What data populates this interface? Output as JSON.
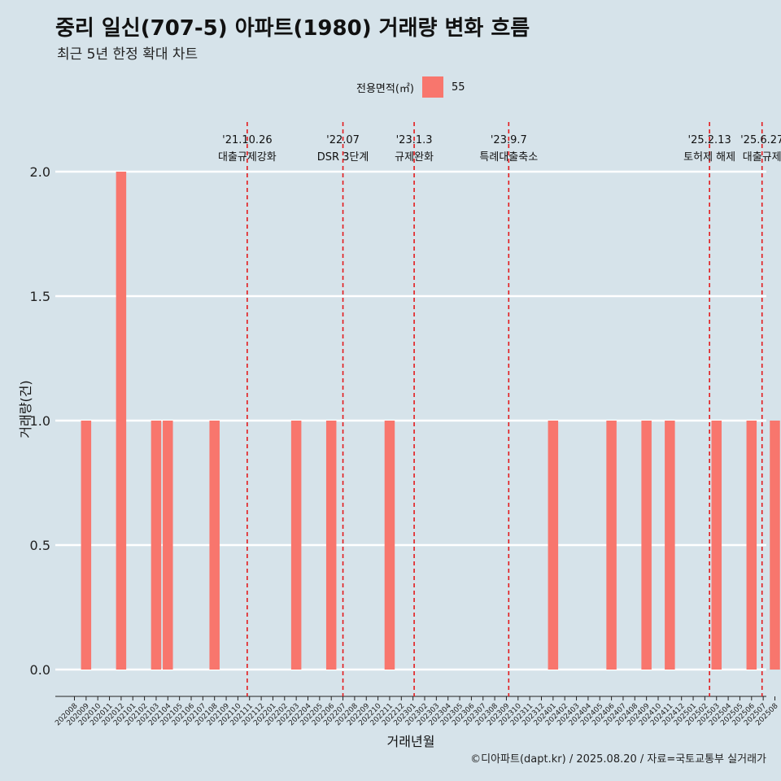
{
  "header": {
    "title": "중리 일신(707-5) 아파트(1980) 거래량 변화 흐름",
    "subtitle": "최근 5년 한정 확대 차트"
  },
  "legend": {
    "title": "전용면적(㎡)",
    "item": "55",
    "color": "#f8766d"
  },
  "caption": "©디아파트(dapt.kr) / 2025.08.20 / 자료=국토교통부 실거래가",
  "colors": {
    "background": "#d6e3ea",
    "bar": "#f8766d",
    "grid": "#ffffff",
    "event_line": "#e31a1c"
  },
  "chart_data": {
    "type": "bar",
    "title": "중리 일신(707-5) 아파트(1980) 거래량 변화 흐름",
    "subtitle": "최근 5년 한정 확대 차트",
    "xlabel": "거래년월",
    "ylabel": "거래량(건)",
    "ylim": [
      0,
      2
    ],
    "yticks": [
      0.0,
      0.5,
      1.0,
      1.5,
      2.0
    ],
    "ytick_labels": [
      "0.0",
      "0.5",
      "1.0",
      "1.5",
      "2.0"
    ],
    "grid": "horizontal major lines",
    "legend_position": "top",
    "categories": [
      "202008",
      "202009",
      "202010",
      "202011",
      "202012",
      "202101",
      "202102",
      "202103",
      "202104",
      "202105",
      "202106",
      "202107",
      "202108",
      "202109",
      "202110",
      "202111",
      "202112",
      "202201",
      "202202",
      "202203",
      "202204",
      "202205",
      "202206",
      "202207",
      "202208",
      "202209",
      "202210",
      "202211",
      "202212",
      "202301",
      "202302",
      "202303",
      "202304",
      "202305",
      "202306",
      "202307",
      "202308",
      "202309",
      "202310",
      "202311",
      "202312",
      "202401",
      "202402",
      "202403",
      "202404",
      "202405",
      "202406",
      "202407",
      "202408",
      "202409",
      "202410",
      "202411",
      "202412",
      "202501",
      "202502",
      "202503",
      "202504",
      "202505",
      "202506",
      "202507",
      "202508"
    ],
    "series": [
      {
        "name": "55",
        "color": "#f8766d",
        "values": [
          0,
          1,
          0,
          0,
          2,
          0,
          0,
          1,
          1,
          0,
          0,
          0,
          1,
          0,
          0,
          0,
          0,
          0,
          0,
          1,
          0,
          0,
          1,
          0,
          0,
          0,
          0,
          1,
          0,
          0,
          0,
          0,
          0,
          0,
          0,
          0,
          0,
          0,
          0,
          0,
          0,
          1,
          0,
          0,
          0,
          0,
          1,
          0,
          0,
          1,
          0,
          1,
          0,
          0,
          0,
          1,
          0,
          0,
          1,
          0,
          1
        ]
      }
    ],
    "events": [
      {
        "date": "'21.10.26",
        "label": "대출규제강화",
        "x": "202110",
        "offset": 0.8
      },
      {
        "date": "'22.07",
        "label": "DSR 3단계",
        "x": "202207",
        "offset": 0.0
      },
      {
        "date": "'23.1.3",
        "label": "규제완화",
        "x": "202301",
        "offset": 0.1
      },
      {
        "date": "'23.9.7",
        "label": "특례대출축소",
        "x": "202309",
        "offset": 0.2
      },
      {
        "date": "'25.2.13",
        "label": "토허제 해제",
        "x": "202502",
        "offset": 0.4
      },
      {
        "date": "'25.6.27",
        "label": "대출규제",
        "x": "202506",
        "offset": 0.9
      }
    ]
  }
}
